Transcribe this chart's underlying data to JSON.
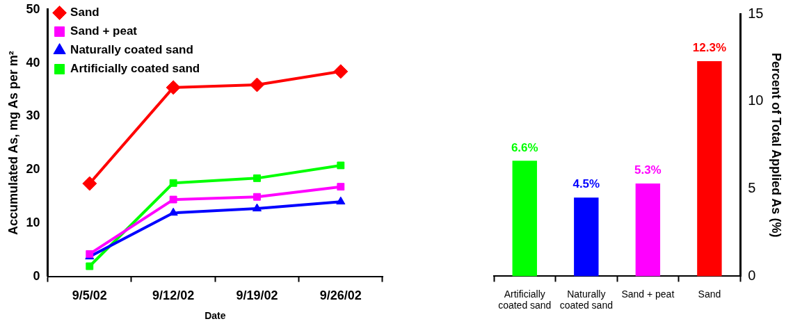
{
  "chart_data": [
    {
      "type": "line",
      "ylabel": "Accumulated As, mg As per m²",
      "xlabel": "Date",
      "categories": [
        "9/5/02",
        "9/12/02",
        "9/19/02",
        "9/26/02"
      ],
      "ylim": [
        0,
        50
      ],
      "yticks": [
        0,
        10,
        20,
        30,
        40,
        50
      ],
      "grid": false,
      "legend": "top left",
      "series": [
        {
          "name": "Sand",
          "color": "#ff0000",
          "marker": "diamond",
          "values": [
            17.4,
            35.4,
            35.9,
            38.4
          ]
        },
        {
          "name": "Sand + peat",
          "color": "#ff00ff",
          "marker": "square",
          "values": [
            4.2,
            14.4,
            14.9,
            16.8
          ]
        },
        {
          "name": "Naturally coated sand",
          "color": "#0000ff",
          "marker": "triangle",
          "values": [
            3.7,
            11.9,
            12.7,
            14.0
          ]
        },
        {
          "name": "Artificially coated sand",
          "color": "#00ff00",
          "marker": "square",
          "values": [
            1.9,
            17.5,
            18.4,
            20.8
          ]
        }
      ]
    },
    {
      "type": "bar",
      "y2label": "Percent of Total Applied As (%)",
      "categories": [
        "Artificially coated sand",
        "Naturally coated sand",
        "Sand + peat",
        "Sand"
      ],
      "y2lim": [
        0,
        15
      ],
      "y2ticks": [
        0,
        5,
        10,
        15
      ],
      "grid": false,
      "legend": false,
      "series": [
        {
          "axis": "y2",
          "colors": [
            "#00ff00",
            "#0000ff",
            "#ff00ff",
            "#ff0000"
          ],
          "values": [
            6.6,
            4.5,
            5.3,
            12.3
          ],
          "value_labels": [
            "6.6%",
            "4.5%",
            "5.3%",
            "12.3%"
          ]
        }
      ]
    }
  ]
}
